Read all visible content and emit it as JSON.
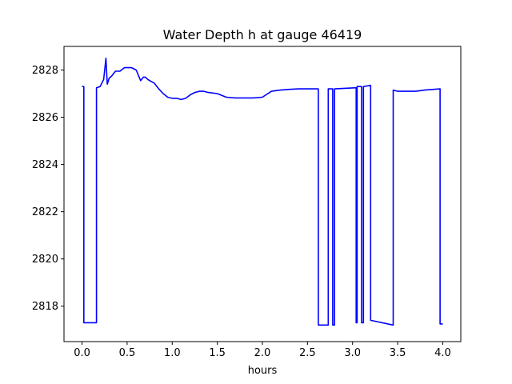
{
  "chart_data": {
    "type": "line",
    "title": "Water Depth h at gauge 46419",
    "xlabel": "hours",
    "ylabel": "",
    "xlim": [
      -0.2,
      4.2
    ],
    "ylim": [
      2816.5,
      2829.0
    ],
    "xticks": [
      0.0,
      0.5,
      1.0,
      1.5,
      2.0,
      2.5,
      3.0,
      3.5,
      4.0
    ],
    "xtick_labels": [
      "0.0",
      "0.5",
      "1.0",
      "1.5",
      "2.0",
      "2.5",
      "3.0",
      "3.5",
      "4.0"
    ],
    "yticks": [
      2818,
      2820,
      2822,
      2824,
      2826,
      2828
    ],
    "ytick_labels": [
      "2818",
      "2820",
      "2822",
      "2824",
      "2826",
      "2828"
    ],
    "grid": false,
    "series": [
      {
        "color": "#0000ff",
        "x": [
          0.0,
          0.02,
          0.02,
          0.16,
          0.16,
          0.2,
          0.24,
          0.265,
          0.28,
          0.3,
          0.33,
          0.37,
          0.42,
          0.47,
          0.52,
          0.55,
          0.6,
          0.65,
          0.68,
          0.7,
          0.73,
          0.75,
          0.8,
          0.85,
          0.9,
          0.95,
          1.0,
          1.05,
          1.1,
          1.15,
          1.2,
          1.25,
          1.3,
          1.35,
          1.4,
          1.5,
          1.6,
          1.7,
          1.8,
          1.9,
          2.0,
          2.1,
          2.2,
          2.3,
          2.4,
          2.5,
          2.6,
          2.62,
          2.62,
          2.73,
          2.73,
          2.78,
          2.78,
          2.8,
          2.8,
          3.04,
          3.04,
          3.05,
          3.05,
          3.1,
          3.1,
          3.12,
          3.12,
          3.2,
          3.2,
          3.45,
          3.45,
          3.5,
          3.6,
          3.7,
          3.8,
          3.97,
          3.97,
          4.0
        ],
        "y": [
          2827.3,
          2827.3,
          2817.3,
          2817.3,
          2827.25,
          2827.3,
          2827.6,
          2828.5,
          2827.4,
          2827.65,
          2827.75,
          2827.95,
          2827.95,
          2828.1,
          2828.1,
          2828.1,
          2828.0,
          2827.55,
          2827.7,
          2827.7,
          2827.6,
          2827.55,
          2827.45,
          2827.2,
          2827.0,
          2826.85,
          2826.8,
          2826.8,
          2826.75,
          2826.8,
          2826.95,
          2827.05,
          2827.1,
          2827.1,
          2827.05,
          2827.0,
          2826.85,
          2826.82,
          2826.82,
          2826.82,
          2826.85,
          2827.1,
          2827.15,
          2827.18,
          2827.2,
          2827.2,
          2827.2,
          2827.2,
          2817.2,
          2817.2,
          2827.2,
          2827.2,
          2817.2,
          2817.2,
          2827.2,
          2827.25,
          2817.3,
          2817.3,
          2827.3,
          2827.3,
          2817.3,
          2817.3,
          2827.3,
          2827.35,
          2817.4,
          2817.2,
          2827.15,
          2827.1,
          2827.1,
          2827.1,
          2827.15,
          2827.2,
          2817.25,
          2817.25
        ]
      }
    ]
  }
}
